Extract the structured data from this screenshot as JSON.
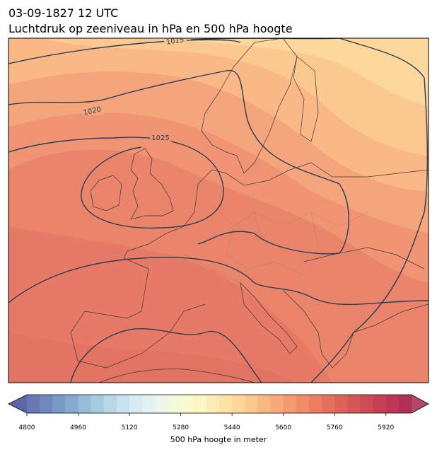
{
  "title": "03-09-1827 12 UTC",
  "subtitle": "Luchtdruk op zeeniveau in hPa en 500 hPa hoogte",
  "contour_labels": [
    "1015",
    "1020",
    "1025"
  ],
  "colorbar": {
    "label": "500 hPa hoogte in meter",
    "lim": [
      4800,
      6000
    ],
    "ticks": [
      4800,
      4960,
      5120,
      5280,
      5440,
      5600,
      5760,
      5920
    ],
    "under_color": "#5f66a8",
    "over_color": "#b24a64",
    "colors": [
      "#6a78b8",
      "#7088bd",
      "#7a9ac6",
      "#86aacf",
      "#96bcd8",
      "#a6cbe0",
      "#b8d8e8",
      "#c8e3ef",
      "#d6ebf3",
      "#e2f1f3",
      "#ecf6ea",
      "#f3f9dc",
      "#f8fad0",
      "#fcf6c4",
      "#fdedb4",
      "#fde3a6",
      "#fdd79a",
      "#fcc88e",
      "#fbb883",
      "#f9a879",
      "#f69a70",
      "#f18b68",
      "#ec7d62",
      "#e5705d",
      "#dd6359",
      "#d55656",
      "#cc4b55",
      "#c44155",
      "#bc3756",
      "#b02f54"
    ]
  }
}
